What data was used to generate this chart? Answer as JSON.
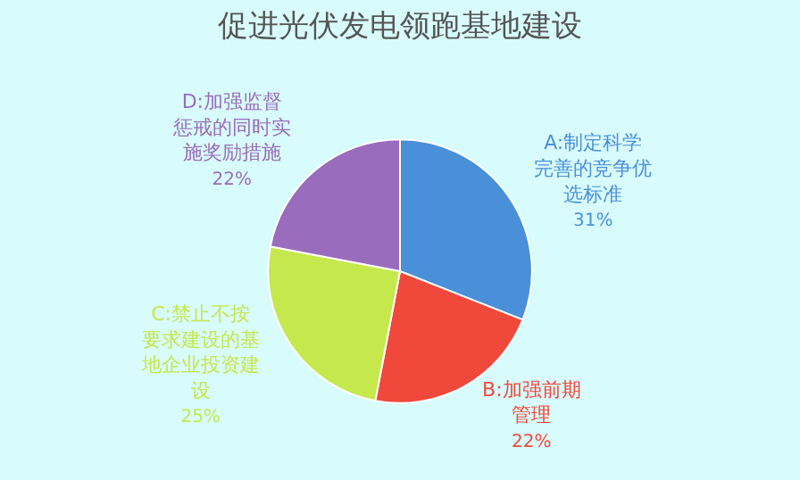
{
  "chart_data": {
    "type": "pie",
    "title": "促进光伏发电领跑基地建设",
    "categories": [
      "A:制定科学完善的竞争优选标准",
      "B:加强前期管理",
      "C:禁止不按要求建设的基地企业投资建设",
      "D:加强监督惩戒的同时实施奖励措施"
    ],
    "values": [
      31,
      22,
      25,
      22
    ],
    "value_labels": [
      "31%",
      "22%",
      "25%",
      "22%"
    ],
    "colors": [
      "#4a90d9",
      "#f0483a",
      "#c5e84c",
      "#9a6cbd"
    ],
    "legend": false
  }
}
